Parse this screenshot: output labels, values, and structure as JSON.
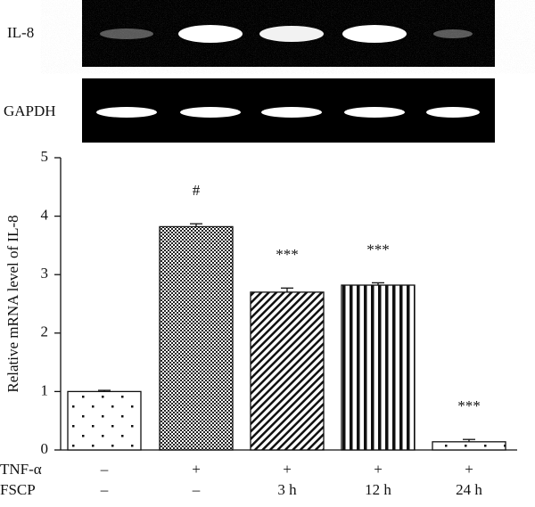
{
  "chart_data": {
    "type": "bar",
    "gel_labels": [
      "IL-8",
      "GAPDH"
    ],
    "ylabel": "Relative mRNA level of IL-8",
    "values": [
      1.0,
      3.82,
      2.7,
      2.82,
      0.14
    ],
    "errors": [
      0.02,
      0.05,
      0.07,
      0.04,
      0.04
    ],
    "annotations": [
      null,
      "#",
      "***",
      "***",
      "***"
    ],
    "patterns": [
      "dots",
      "checker",
      "diagonal",
      "vertical",
      "dots"
    ],
    "treatments": [
      {
        "name": "TNF-α",
        "labels": [
          "–",
          "+",
          "+",
          "+",
          "+"
        ]
      },
      {
        "name": "FSCP",
        "labels": [
          "–",
          "–",
          "3 h",
          "12 h",
          "24 h"
        ]
      }
    ],
    "ylim": [
      0,
      5
    ],
    "yticks": [
      0,
      1,
      2,
      3,
      4,
      5
    ]
  }
}
